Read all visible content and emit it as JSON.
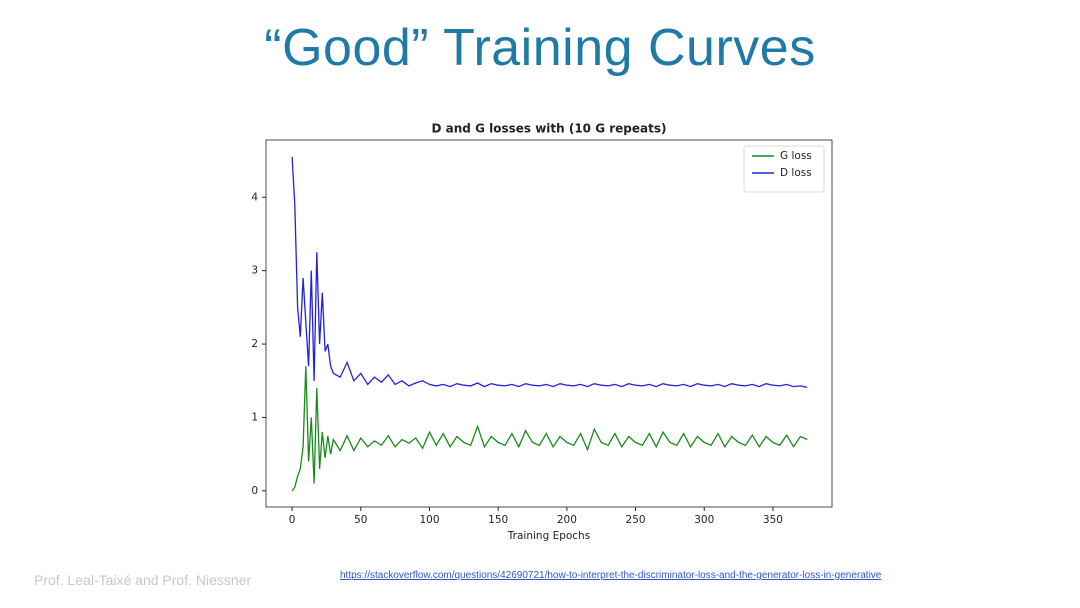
{
  "slide_title": "“Good” Training Curves",
  "footer": "Prof. Leal-Taixé and Prof. Niessner",
  "source_link": "https://stackoverflow.com/questions/42690721/how-to-interpret-the-discriminator-loss-and-the-generator-loss-in-generative",
  "chart_data": {
    "type": "line",
    "title": "D and G losses with (10 G repeats)",
    "x_label": "Training Epochs",
    "x": [
      0,
      2,
      4,
      6,
      8,
      10,
      12,
      14,
      16,
      18,
      20,
      22,
      24,
      26,
      28,
      30,
      35,
      40,
      45,
      50,
      55,
      60,
      65,
      70,
      75,
      80,
      85,
      90,
      95,
      100,
      105,
      110,
      115,
      120,
      125,
      130,
      135,
      140,
      145,
      150,
      155,
      160,
      165,
      170,
      175,
      180,
      185,
      190,
      195,
      200,
      205,
      210,
      215,
      220,
      225,
      230,
      235,
      240,
      245,
      250,
      255,
      260,
      265,
      270,
      275,
      280,
      285,
      290,
      295,
      300,
      305,
      310,
      315,
      320,
      325,
      330,
      335,
      340,
      345,
      350,
      355,
      360,
      365,
      370,
      375
    ],
    "series": [
      {
        "name": "G loss",
        "color": "#1a8a1a",
        "values": [
          0.0,
          0.05,
          0.2,
          0.3,
          0.6,
          1.7,
          0.4,
          1.0,
          0.1,
          1.4,
          0.3,
          0.8,
          0.45,
          0.75,
          0.5,
          0.7,
          0.55,
          0.75,
          0.55,
          0.72,
          0.6,
          0.68,
          0.62,
          0.75,
          0.6,
          0.7,
          0.65,
          0.72,
          0.58,
          0.8,
          0.62,
          0.78,
          0.6,
          0.74,
          0.66,
          0.62,
          0.88,
          0.6,
          0.74,
          0.66,
          0.62,
          0.78,
          0.6,
          0.82,
          0.66,
          0.62,
          0.78,
          0.6,
          0.74,
          0.66,
          0.62,
          0.78,
          0.56,
          0.84,
          0.66,
          0.62,
          0.78,
          0.6,
          0.74,
          0.66,
          0.62,
          0.78,
          0.6,
          0.8,
          0.66,
          0.62,
          0.78,
          0.6,
          0.74,
          0.66,
          0.62,
          0.78,
          0.6,
          0.74,
          0.66,
          0.62,
          0.76,
          0.6,
          0.74,
          0.66,
          0.62,
          0.76,
          0.6,
          0.74,
          0.7
        ]
      },
      {
        "name": "D loss",
        "color": "#2222dd",
        "values": [
          4.55,
          3.9,
          2.5,
          2.1,
          2.9,
          2.3,
          1.7,
          3.0,
          1.5,
          3.25,
          2.0,
          2.7,
          1.9,
          2.0,
          1.7,
          1.6,
          1.55,
          1.75,
          1.5,
          1.6,
          1.45,
          1.55,
          1.48,
          1.58,
          1.45,
          1.5,
          1.43,
          1.47,
          1.5,
          1.45,
          1.43,
          1.45,
          1.42,
          1.46,
          1.44,
          1.43,
          1.47,
          1.42,
          1.46,
          1.44,
          1.43,
          1.45,
          1.42,
          1.46,
          1.44,
          1.43,
          1.45,
          1.42,
          1.46,
          1.44,
          1.43,
          1.45,
          1.42,
          1.46,
          1.44,
          1.43,
          1.45,
          1.42,
          1.46,
          1.44,
          1.43,
          1.45,
          1.42,
          1.46,
          1.44,
          1.43,
          1.45,
          1.42,
          1.46,
          1.44,
          1.43,
          1.45,
          1.42,
          1.46,
          1.44,
          1.43,
          1.45,
          1.42,
          1.46,
          1.44,
          1.43,
          1.45,
          1.42,
          1.43,
          1.41
        ]
      }
    ],
    "xlim": [
      -19,
      393
    ],
    "ylim": [
      -0.22,
      4.78
    ],
    "xticks": [
      0,
      50,
      100,
      150,
      200,
      250,
      300,
      350
    ],
    "yticks": [
      0,
      1,
      2,
      3,
      4
    ],
    "grid": false,
    "legend": "upper right"
  }
}
